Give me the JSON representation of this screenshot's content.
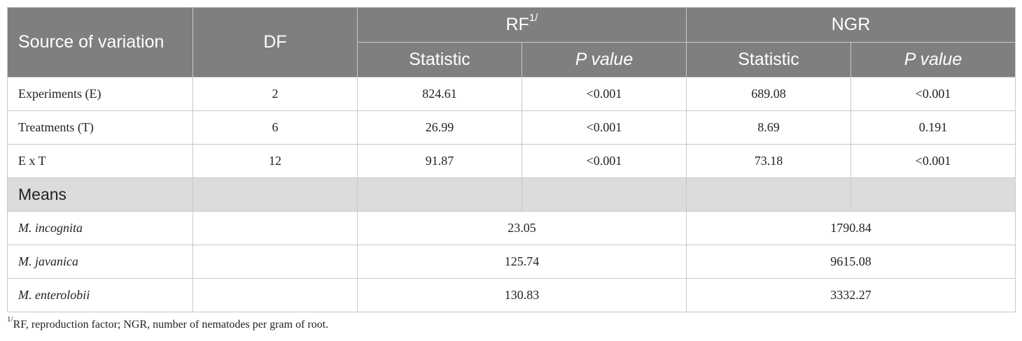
{
  "header": {
    "source": "Source of variation",
    "df": "DF",
    "rf": "RF",
    "rf_sup": "1/",
    "ngr": "NGR",
    "statistic": "Statistic",
    "pvalue": "P value"
  },
  "rows": [
    {
      "source": "Experiments (E)",
      "df": "2",
      "rf_stat": "824.61",
      "rf_p": "<0.001",
      "ngr_stat": "689.08",
      "ngr_p": "<0.001"
    },
    {
      "source": "Treatments (T)",
      "df": "6",
      "rf_stat": "26.99",
      "rf_p": "<0.001",
      "ngr_stat": "8.69",
      "ngr_p": "0.191"
    },
    {
      "source": "E x T",
      "df": "12",
      "rf_stat": "91.87",
      "rf_p": "<0.001",
      "ngr_stat": "73.18",
      "ngr_p": "<0.001"
    }
  ],
  "means_label": "Means",
  "means": [
    {
      "species": "M. incognita",
      "rf": "23.05",
      "ngr": "1790.84"
    },
    {
      "species": "M. javanica",
      "rf": "125.74",
      "ngr": "9615.08"
    },
    {
      "species": "M. enterolobii",
      "rf": "130.83",
      "ngr": "3332.27"
    }
  ],
  "footnote": {
    "sup": "1/",
    "text": "RF, reproduction factor; NGR, number of nematodes per gram of root."
  }
}
